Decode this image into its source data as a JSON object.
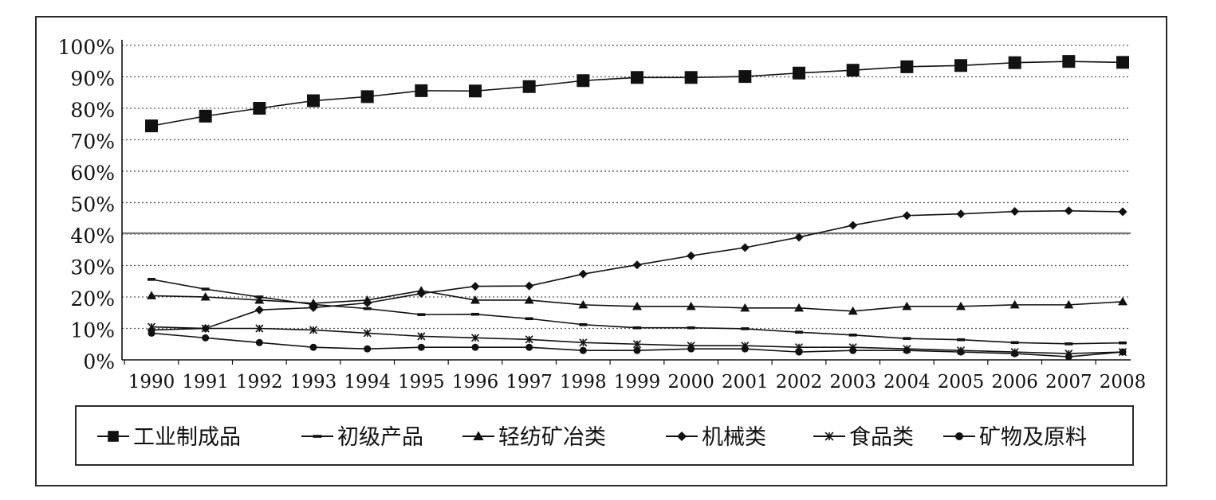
{
  "chart_data": {
    "type": "line",
    "title": "",
    "xlabel": "",
    "ylabel": "",
    "categories": [
      "1990",
      "1991",
      "1992",
      "1993",
      "1994",
      "1995",
      "1996",
      "1997",
      "1998",
      "1999",
      "2000",
      "2001",
      "2002",
      "2003",
      "2004",
      "2005",
      "2006",
      "2007",
      "2008"
    ],
    "y_ticks": [
      "0%",
      "10%",
      "20%",
      "30%",
      "40%",
      "50%",
      "60%",
      "70%",
      "80%",
      "90%",
      "100%"
    ],
    "ylim": [
      0,
      100
    ],
    "grid": "horizontal dotted",
    "legend_position": "bottom",
    "series": [
      {
        "name": "工业制成品",
        "marker": "square",
        "values": [
          74.4,
          77.5,
          80.0,
          82.4,
          83.7,
          85.6,
          85.5,
          86.9,
          88.8,
          89.8,
          89.8,
          90.1,
          91.2,
          92.1,
          93.2,
          93.6,
          94.5,
          94.9,
          94.6
        ]
      },
      {
        "name": "初级产品",
        "marker": "dash",
        "values": [
          25.6,
          22.5,
          20.0,
          17.6,
          16.3,
          14.4,
          14.5,
          13.1,
          11.2,
          10.2,
          10.2,
          9.9,
          8.8,
          7.9,
          6.8,
          6.4,
          5.5,
          5.1,
          5.4
        ]
      },
      {
        "name": "轻纺矿冶类",
        "marker": "triangle",
        "values": [
          20.4,
          20.0,
          19.0,
          18.0,
          19.0,
          22.0,
          19.0,
          19.0,
          17.5,
          17.0,
          17.0,
          16.5,
          16.5,
          15.5,
          17.0,
          17.0,
          17.5,
          17.5,
          18.5
        ]
      },
      {
        "name": "机械类",
        "marker": "diamond",
        "values": [
          9.5,
          10.0,
          15.9,
          16.6,
          18.1,
          21.1,
          23.4,
          23.5,
          27.3,
          30.2,
          33.1,
          35.7,
          39.0,
          42.8,
          45.9,
          46.4,
          47.2,
          47.4,
          47.1
        ]
      },
      {
        "name": "食品类",
        "marker": "asterisk",
        "values": [
          10.5,
          10.0,
          10.0,
          9.5,
          8.5,
          7.5,
          7.0,
          6.5,
          5.5,
          5.0,
          4.5,
          4.5,
          4.0,
          4.0,
          3.5,
          3.0,
          2.5,
          2.0,
          2.5
        ]
      },
      {
        "name": "矿物及原料",
        "marker": "circle",
        "values": [
          8.5,
          7.0,
          5.5,
          4.0,
          3.5,
          4.0,
          4.0,
          4.0,
          3.0,
          3.0,
          3.5,
          3.5,
          2.5,
          3.0,
          3.0,
          2.5,
          2.0,
          1.0,
          2.5
        ]
      }
    ]
  }
}
